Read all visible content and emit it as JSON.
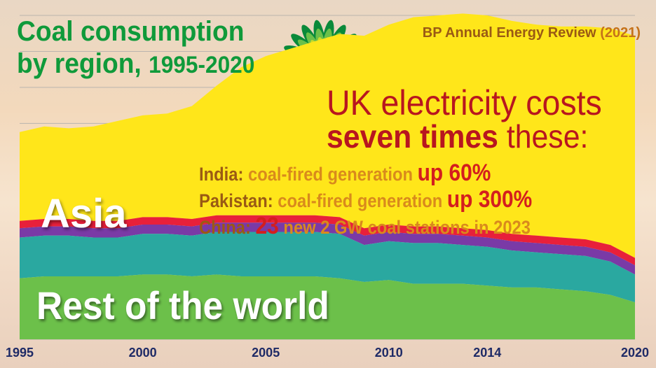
{
  "title": {
    "line1": "Coal consumption",
    "line2_text": "by region,",
    "line2_years": "1995-2020"
  },
  "source": {
    "text": "BP Annual Energy Review",
    "year": "(2021)"
  },
  "headline": {
    "line1": "UK electricity costs",
    "line2_bold": "seven times",
    "line2_rest": "these:"
  },
  "facts": [
    {
      "label": "India:",
      "mid": "coal-fired generation",
      "highlight": "up 60%"
    },
    {
      "label": "Pakistan:",
      "mid": "coal-fired generation",
      "highlight": "up 300%"
    },
    {
      "label": "China:",
      "highlight": "23",
      "mid": "new 2 GW coal stations in 2023"
    }
  ],
  "area_labels": {
    "asia": "Asia",
    "rest": "Rest of the world"
  },
  "colors": {
    "asia": "#ffe61a",
    "red_band": "#e8203a",
    "purple_band": "#7a3aa6",
    "teal_band": "#2aa8a0",
    "green_band": "#6cc04a",
    "title": "#0f9a3a",
    "axis_text": "#1e2a66"
  },
  "chart_data": {
    "type": "area",
    "stacked": true,
    "title": "Coal consumption by region, 1995-2020",
    "x": [
      1995,
      1996,
      1997,
      1998,
      1999,
      2000,
      2001,
      2002,
      2003,
      2004,
      2005,
      2006,
      2007,
      2008,
      2009,
      2010,
      2011,
      2012,
      2013,
      2014,
      2015,
      2016,
      2017,
      2018,
      2019,
      2020
    ],
    "x_tick_labels": [
      "1995",
      "2000",
      "2005",
      "2010",
      "2014",
      "2020"
    ],
    "ylim": [
      0,
      175
    ],
    "grid": true,
    "series": [
      {
        "name": "Rest of the world",
        "color": "#6cc04a",
        "values": [
          33,
          34,
          34,
          34,
          34,
          35,
          35,
          34,
          35,
          34,
          34,
          34,
          34,
          33,
          31,
          32,
          30,
          30,
          30,
          29,
          28,
          28,
          27,
          26,
          24,
          20
        ]
      },
      {
        "color": "#2aa8a0",
        "values": [
          22,
          22,
          22,
          21,
          21,
          22,
          22,
          22,
          23,
          24,
          24,
          24,
          24,
          24,
          20,
          21,
          22,
          22,
          21,
          21,
          20,
          19,
          19,
          19,
          18,
          15
        ]
      },
      {
        "color": "#7a3aa6",
        "values": [
          5,
          5,
          5,
          5,
          5,
          5,
          5,
          5,
          5,
          5,
          5,
          5,
          5,
          5,
          5,
          5,
          5,
          5,
          5,
          5,
          5,
          5,
          5,
          5,
          5,
          5
        ]
      },
      {
        "color": "#e8203a",
        "values": [
          4,
          4,
          4,
          4,
          4,
          4,
          4,
          4,
          4,
          4,
          4,
          4,
          4,
          4,
          4,
          4,
          4,
          4,
          4,
          4,
          4,
          4,
          4,
          4,
          4,
          4
        ]
      },
      {
        "name": "Asia",
        "color": "#ffe61a",
        "values": [
          48,
          50,
          49,
          51,
          54,
          55,
          56,
          61,
          70,
          80,
          86,
          90,
          94,
          99,
          104,
          108,
          113,
          114,
          116,
          116,
          115,
          114,
          114,
          115,
          117,
          120
        ]
      }
    ]
  }
}
